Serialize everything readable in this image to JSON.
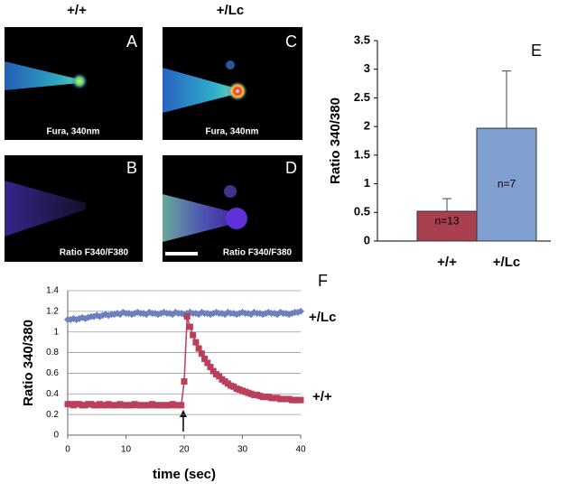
{
  "column_labels": [
    "+/+",
    "+/Lc"
  ],
  "panels": [
    {
      "letter": "A",
      "caption": "Fura, 340nm"
    },
    {
      "letter": "C",
      "caption": "Fura, 340nm"
    },
    {
      "letter": "B",
      "caption": "Ratio F340/F380"
    },
    {
      "letter": "D",
      "caption": "Ratio F340/F380"
    }
  ],
  "chart_data": [
    {
      "type": "bar",
      "label": "E",
      "ylabel": "Ratio 340/380",
      "categories": [
        "+/+",
        "+/Lc"
      ],
      "values": [
        0.52,
        1.97
      ],
      "errors": [
        0.22,
        1.0
      ],
      "colors": [
        "#a8404f",
        "#7f9fd0"
      ],
      "bar_labels": [
        "n=13",
        "n=7"
      ],
      "ylim": [
        0,
        3.5
      ],
      "yticks": [
        0,
        0.5,
        1,
        1.5,
        2,
        2.5,
        3,
        3.5
      ]
    },
    {
      "type": "line",
      "label": "F",
      "xlabel": "time (sec)",
      "ylabel": "Ratio 340/380",
      "x": [
        0,
        0.5,
        1,
        1.5,
        2,
        2.5,
        3,
        3.5,
        4,
        4.5,
        5,
        5.5,
        6,
        6.5,
        7,
        7.5,
        8,
        8.5,
        9,
        9.5,
        10,
        10.5,
        11,
        11.5,
        12,
        12.5,
        13,
        13.5,
        14,
        14.5,
        15,
        15.5,
        16,
        16.5,
        17,
        17.5,
        18,
        18.5,
        19,
        19.5,
        20,
        20.5,
        21,
        21.5,
        22,
        22.5,
        23,
        23.5,
        24,
        24.5,
        25,
        25.5,
        26,
        26.5,
        27,
        27.5,
        28,
        28.5,
        29,
        29.5,
        30,
        30.5,
        31,
        31.5,
        32,
        32.5,
        33,
        33.5,
        34,
        34.5,
        35,
        35.5,
        36,
        36.5,
        37,
        37.5,
        38,
        38.5,
        39,
        39.5,
        40
      ],
      "series": [
        {
          "name": "+/Lc",
          "color": "#6b80bd",
          "marker": "diamond",
          "values": [
            1.12,
            1.12,
            1.13,
            1.12,
            1.13,
            1.14,
            1.13,
            1.14,
            1.15,
            1.15,
            1.16,
            1.15,
            1.16,
            1.17,
            1.16,
            1.17,
            1.17,
            1.18,
            1.17,
            1.19,
            1.18,
            1.18,
            1.17,
            1.18,
            1.19,
            1.18,
            1.18,
            1.17,
            1.19,
            1.18,
            1.18,
            1.17,
            1.18,
            1.19,
            1.18,
            1.18,
            1.17,
            1.19,
            1.18,
            1.18,
            1.17,
            1.18,
            1.19,
            1.18,
            1.18,
            1.17,
            1.19,
            1.18,
            1.18,
            1.17,
            1.18,
            1.19,
            1.18,
            1.18,
            1.17,
            1.19,
            1.18,
            1.18,
            1.17,
            1.18,
            1.19,
            1.18,
            1.18,
            1.17,
            1.19,
            1.18,
            1.18,
            1.17,
            1.18,
            1.19,
            1.18,
            1.18,
            1.17,
            1.19,
            1.18,
            1.18,
            1.17,
            1.18,
            1.19,
            1.19,
            1.2
          ]
        },
        {
          "name": "+/+",
          "color": "#b8405a",
          "marker": "square",
          "values": [
            0.3,
            0.3,
            0.29,
            0.3,
            0.3,
            0.29,
            0.29,
            0.3,
            0.3,
            0.29,
            0.29,
            0.3,
            0.29,
            0.29,
            0.3,
            0.29,
            0.29,
            0.29,
            0.3,
            0.29,
            0.29,
            0.29,
            0.29,
            0.3,
            0.29,
            0.29,
            0.29,
            0.29,
            0.29,
            0.3,
            0.29,
            0.29,
            0.29,
            0.29,
            0.29,
            0.29,
            0.3,
            0.29,
            0.29,
            0.29,
            0.52,
            1.15,
            1.05,
            0.97,
            0.9,
            0.84,
            0.79,
            0.74,
            0.7,
            0.66,
            0.62,
            0.59,
            0.57,
            0.54,
            0.52,
            0.5,
            0.48,
            0.47,
            0.45,
            0.44,
            0.43,
            0.42,
            0.41,
            0.4,
            0.39,
            0.39,
            0.38,
            0.37,
            0.37,
            0.37,
            0.36,
            0.36,
            0.36,
            0.35,
            0.35,
            0.35,
            0.35,
            0.34,
            0.34,
            0.34,
            0.34
          ]
        }
      ],
      "xlim": [
        0,
        40
      ],
      "xticks": [
        0,
        10,
        20,
        30,
        40
      ],
      "ylim": [
        0,
        1.4
      ],
      "yticks": [
        0,
        0.2,
        0.4,
        0.6,
        0.8,
        1,
        1.2,
        1.4
      ],
      "grid": true
    }
  ]
}
